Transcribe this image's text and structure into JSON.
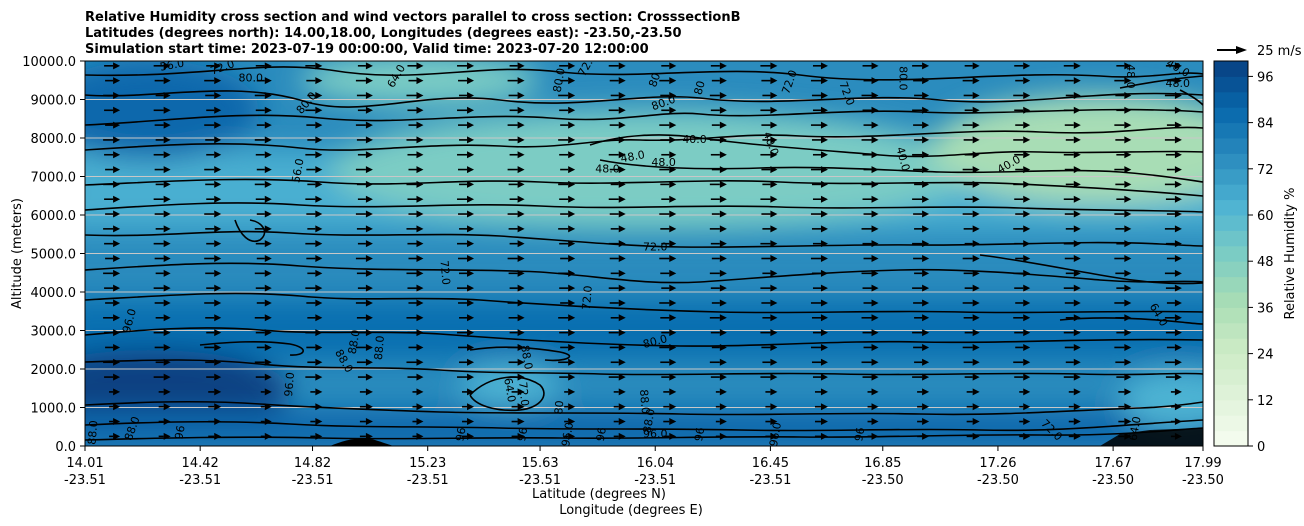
{
  "chart_data": {
    "type": "contour",
    "title_lines": [
      "Relative Humidity cross section and wind vectors parallel to cross section: CrosssectionB",
      "Latitudes (degrees north): 14.00,18.00, Longitudes (degrees east): -23.50,-23.50",
      "Simulation start time: 2023-07-19 00:00:00, Valid time: 2023-07-20 12:00:00"
    ],
    "ylabel": "Altitude (meters)",
    "xlabel_lines": [
      "Latitude (degrees N)",
      "Longitude (degrees E)"
    ],
    "x_ticks": [
      {
        "lat": "14.01",
        "lon": "-23.51"
      },
      {
        "lat": "14.42",
        "lon": "-23.51"
      },
      {
        "lat": "14.82",
        "lon": "-23.51"
      },
      {
        "lat": "15.23",
        "lon": "-23.51"
      },
      {
        "lat": "15.63",
        "lon": "-23.51"
      },
      {
        "lat": "16.04",
        "lon": "-23.51"
      },
      {
        "lat": "16.45",
        "lon": "-23.51"
      },
      {
        "lat": "16.85",
        "lon": "-23.50"
      },
      {
        "lat": "17.26",
        "lon": "-23.50"
      },
      {
        "lat": "17.67",
        "lon": "-23.50"
      },
      {
        "lat": "17.99",
        "lon": "-23.50"
      }
    ],
    "xlim": [
      14.01,
      17.99
    ],
    "y_ticks": [
      "0.0",
      "1000.0",
      "2000.0",
      "3000.0",
      "4000.0",
      "5000.0",
      "6000.0",
      "7000.0",
      "8000.0",
      "9000.0",
      "10000.0"
    ],
    "ylim": [
      0,
      10000
    ],
    "grid": "horizontal",
    "colorbar": {
      "label": "Relative Humidity %",
      "ticks": [
        "0",
        "12",
        "24",
        "36",
        "48",
        "60",
        "72",
        "84",
        "96"
      ],
      "range": [
        0,
        100
      ],
      "colormap": [
        "#f7fcf0",
        "#e0f3db",
        "#ccebc5",
        "#a8ddb5",
        "#7bccc4",
        "#4eb3d3",
        "#2b8cbe",
        "#0868ac",
        "#084081"
      ]
    },
    "quiver_key": {
      "label": "25 m/s",
      "speed": 25
    },
    "contour_labels": [
      {
        "text": "56.0",
        "x": 14.32,
        "y": 9880,
        "angle": -10
      },
      {
        "text": "72.0",
        "x": 14.5,
        "y": 9820,
        "angle": -20
      },
      {
        "text": "80.0",
        "x": 14.6,
        "y": 9550,
        "angle": 0
      },
      {
        "text": "80.0",
        "x": 14.8,
        "y": 8900,
        "angle": -50
      },
      {
        "text": "64.0",
        "x": 15.12,
        "y": 9600,
        "angle": -60
      },
      {
        "text": "80.0",
        "x": 15.7,
        "y": 9500,
        "angle": -80
      },
      {
        "text": "72.0",
        "x": 15.8,
        "y": 9900,
        "angle": -60
      },
      {
        "text": "80",
        "x": 16.04,
        "y": 9500,
        "angle": -70
      },
      {
        "text": "80.0",
        "x": 16.07,
        "y": 8900,
        "angle": -20
      },
      {
        "text": "80",
        "x": 16.2,
        "y": 9300,
        "angle": -75
      },
      {
        "text": "72.0",
        "x": 16.52,
        "y": 9450,
        "angle": -70
      },
      {
        "text": "72.0",
        "x": 16.72,
        "y": 9150,
        "angle": 70
      },
      {
        "text": "80.0",
        "x": 16.92,
        "y": 9550,
        "angle": 90
      },
      {
        "text": "40.0",
        "x": 16.18,
        "y": 7950,
        "angle": 0
      },
      {
        "text": "40.0",
        "x": 16.45,
        "y": 7850,
        "angle": 70
      },
      {
        "text": "40.0",
        "x": 16.92,
        "y": 7450,
        "angle": 75
      },
      {
        "text": "48.0",
        "x": 15.96,
        "y": 7500,
        "angle": -10
      },
      {
        "text": "48.0",
        "x": 15.87,
        "y": 7180,
        "angle": 0
      },
      {
        "text": "48.0",
        "x": 16.07,
        "y": 7350,
        "angle": 0
      },
      {
        "text": "40.0",
        "x": 17.3,
        "y": 7300,
        "angle": -30
      },
      {
        "text": "48.0",
        "x": 17.73,
        "y": 9600,
        "angle": 90
      },
      {
        "text": "48.0",
        "x": 17.9,
        "y": 9400,
        "angle": 0
      },
      {
        "text": "40.0",
        "x": 17.9,
        "y": 9800,
        "angle": 30
      },
      {
        "text": "56.0",
        "x": 14.77,
        "y": 7150,
        "angle": -80
      },
      {
        "text": "72.0",
        "x": 16.04,
        "y": 5150,
        "angle": 0
      },
      {
        "text": "72.0",
        "x": 15.29,
        "y": 4500,
        "angle": 85
      },
      {
        "text": "72.0",
        "x": 15.8,
        "y": 3850,
        "angle": -85
      },
      {
        "text": "64.0",
        "x": 17.83,
        "y": 3400,
        "angle": 60
      },
      {
        "text": "80.0",
        "x": 16.04,
        "y": 2700,
        "angle": -15
      },
      {
        "text": "88.0",
        "x": 15.06,
        "y": 2550,
        "angle": -85
      },
      {
        "text": "88.0",
        "x": 14.97,
        "y": 2700,
        "angle": -80
      },
      {
        "text": "88.0",
        "x": 14.93,
        "y": 2200,
        "angle": 60
      },
      {
        "text": "88.0",
        "x": 15.58,
        "y": 2300,
        "angle": 80
      },
      {
        "text": "96.0",
        "x": 14.17,
        "y": 3250,
        "angle": -75
      },
      {
        "text": "96.0",
        "x": 14.74,
        "y": 1600,
        "angle": -85
      },
      {
        "text": "64.0",
        "x": 15.52,
        "y": 1450,
        "angle": 80
      },
      {
        "text": "72.0",
        "x": 15.57,
        "y": 1350,
        "angle": 85
      },
      {
        "text": "88.0",
        "x": 16.0,
        "y": 1150,
        "angle": 85
      },
      {
        "text": "88.0",
        "x": 14.18,
        "y": 450,
        "angle": -70
      },
      {
        "text": "88.0",
        "x": 14.04,
        "y": 350,
        "angle": -85
      },
      {
        "text": "96",
        "x": 14.35,
        "y": 350,
        "angle": -80
      },
      {
        "text": "80",
        "x": 15.7,
        "y": 1000,
        "angle": -85
      },
      {
        "text": "88.0",
        "x": 16.02,
        "y": 650,
        "angle": -80
      },
      {
        "text": "96",
        "x": 15.35,
        "y": 300,
        "angle": -80
      },
      {
        "text": "96",
        "x": 15.57,
        "y": 300,
        "angle": -80
      },
      {
        "text": "96.0",
        "x": 15.73,
        "y": 300,
        "angle": -80
      },
      {
        "text": "96",
        "x": 15.85,
        "y": 300,
        "angle": -80
      },
      {
        "text": "96.0",
        "x": 16.04,
        "y": 300,
        "angle": 0
      },
      {
        "text": "96",
        "x": 16.2,
        "y": 300,
        "angle": -80
      },
      {
        "text": "96.0",
        "x": 16.47,
        "y": 300,
        "angle": -80
      },
      {
        "text": "96",
        "x": 16.77,
        "y": 300,
        "angle": -80
      },
      {
        "text": "72.0",
        "x": 17.45,
        "y": 400,
        "angle": 45
      },
      {
        "text": "64.0",
        "x": 17.75,
        "y": 450,
        "angle": -80
      }
    ]
  }
}
